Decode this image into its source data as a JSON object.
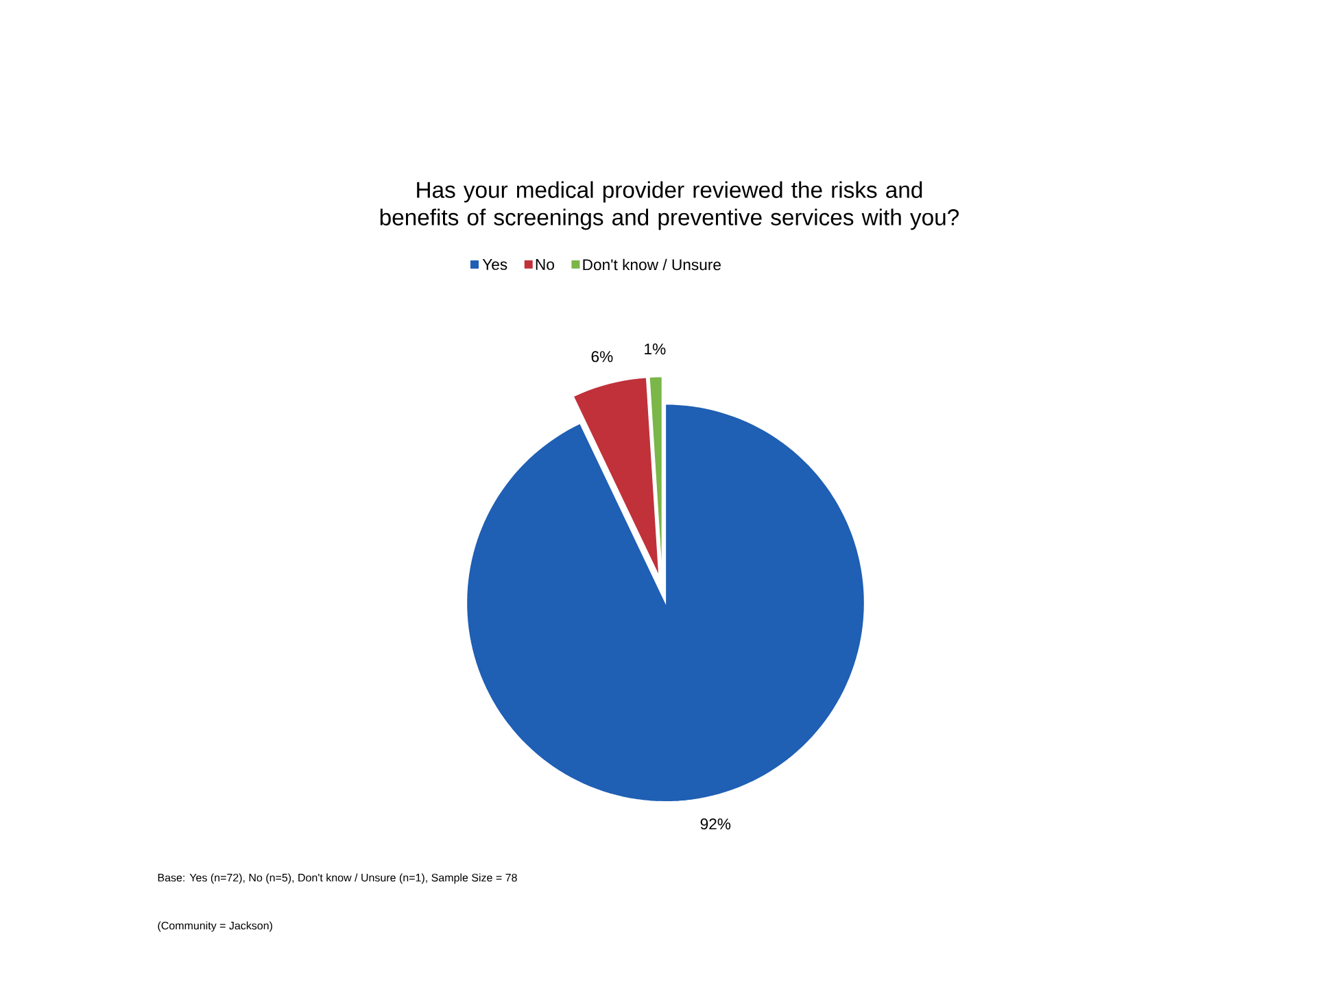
{
  "chart_data": {
    "type": "pie",
    "title": "Has your medical provider reviewed the risks and benefits of screenings and preventive services with you?",
    "categories": [
      "Yes",
      "No",
      "Don't know / Unsure"
    ],
    "values": [
      92,
      6,
      1
    ],
    "colors": [
      "#1f5fb4",
      "#c0313a",
      "#7ab648"
    ],
    "value_labels": [
      "92%",
      "6%",
      "1%"
    ],
    "legend": "top",
    "annotations": [
      "Base: Yes (n=72), No (n=5), Don't know / Unsure (n=1), Sample Size = 78",
      "(Community = Jackson)"
    ]
  }
}
